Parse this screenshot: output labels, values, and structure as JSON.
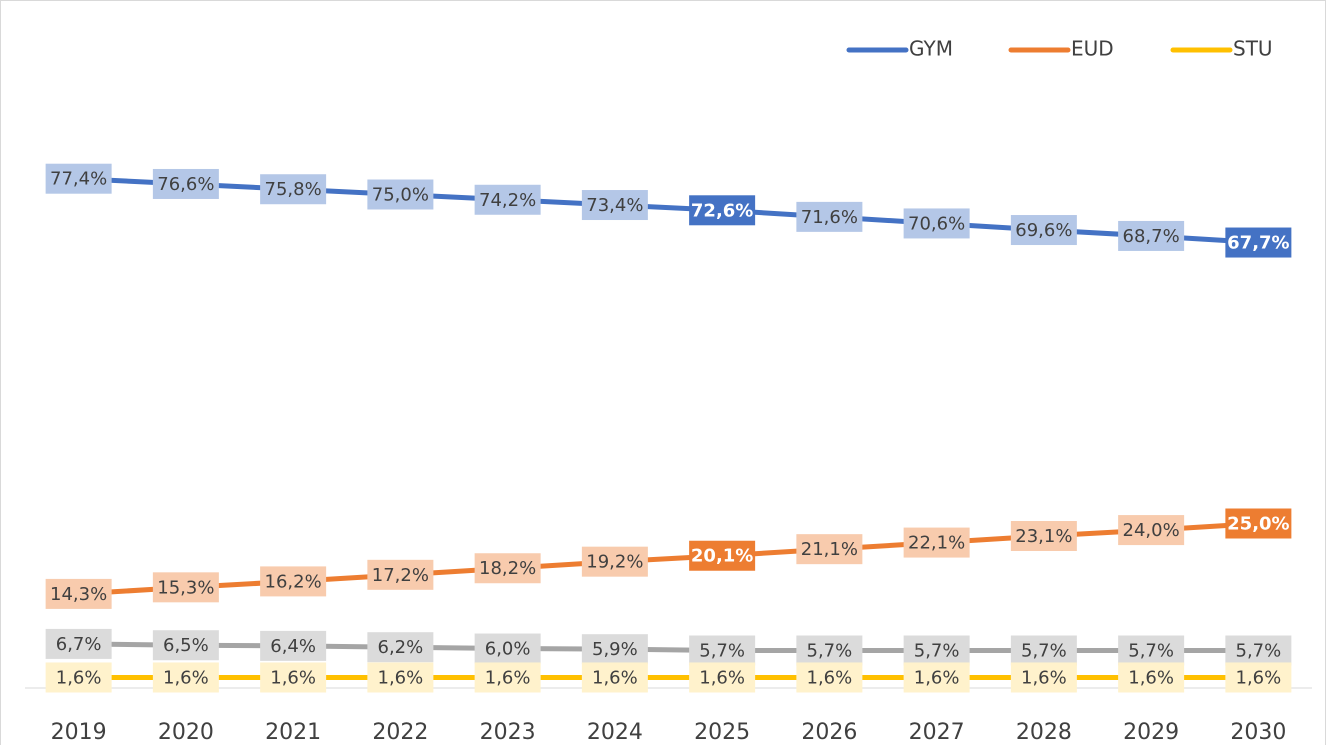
{
  "chart_data": {
    "type": "line",
    "categories": [
      "2019",
      "2020",
      "2021",
      "2022",
      "2023",
      "2024",
      "2025",
      "2026",
      "2027",
      "2028",
      "2029",
      "2030"
    ],
    "ylim": [
      0,
      100
    ],
    "legend": "top-right",
    "series": [
      {
        "name": "GYM",
        "color": "#4472c4",
        "label_fill": "#b4c7e7",
        "highlight": [
          6,
          11
        ],
        "values": [
          77.4,
          76.6,
          75.8,
          75.0,
          74.2,
          73.4,
          72.6,
          71.6,
          70.6,
          69.6,
          68.7,
          67.7
        ],
        "value_labels": [
          "77,4%",
          "76,6%",
          "75,8%",
          "75,0%",
          "74,2%",
          "73,4%",
          "72,6%",
          "71,6%",
          "70,6%",
          "69,6%",
          "68,7%",
          "67,7%"
        ]
      },
      {
        "name": "EUD",
        "color": "#ed7d31",
        "label_fill": "#f8cbad",
        "highlight": [
          6,
          11
        ],
        "values": [
          14.3,
          15.3,
          16.2,
          17.2,
          18.2,
          19.2,
          20.1,
          21.1,
          22.1,
          23.1,
          24.0,
          25.0
        ],
        "value_labels": [
          "14,3%",
          "15,3%",
          "16,2%",
          "17,2%",
          "18,2%",
          "19,2%",
          "20,1%",
          "21,1%",
          "22,1%",
          "23,1%",
          "24,0%",
          "25,0%"
        ]
      },
      {
        "color": "#a5a5a5",
        "label_fill": "#dbdbdb",
        "highlight": [],
        "values": [
          6.7,
          6.5,
          6.4,
          6.2,
          6.0,
          5.9,
          5.7,
          5.7,
          5.7,
          5.7,
          5.7,
          5.7
        ],
        "value_labels": [
          "6,7%",
          "6,5%",
          "6,4%",
          "6,2%",
          "6,0%",
          "5,9%",
          "5,7%",
          "5,7%",
          "5,7%",
          "5,7%",
          "5,7%",
          "5,7%"
        ]
      },
      {
        "name": "STU",
        "color": "#ffc000",
        "label_fill": "#fff2cc",
        "highlight": [],
        "values": [
          1.6,
          1.6,
          1.6,
          1.6,
          1.6,
          1.6,
          1.6,
          1.6,
          1.6,
          1.6,
          1.6,
          1.6
        ],
        "value_labels": [
          "1,6%",
          "1,6%",
          "1,6%",
          "1,6%",
          "1,6%",
          "1,6%",
          "1,6%",
          "1,6%",
          "1,6%",
          "1,6%",
          "1,6%",
          "1,6%"
        ]
      }
    ]
  }
}
